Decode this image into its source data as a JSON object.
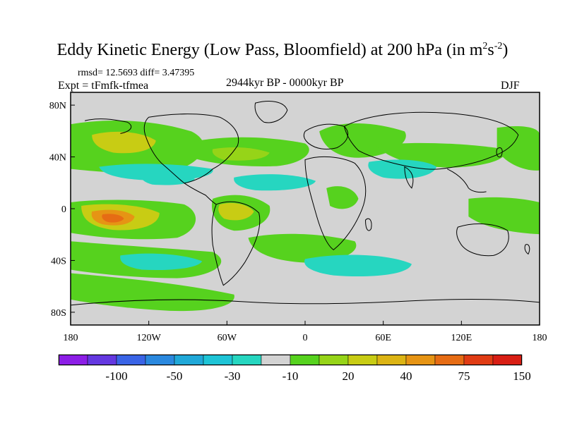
{
  "title": {
    "main": "Eddy Kinetic Energy (Low Pass, Bloomfield) at 200 hPa (in m",
    "sup1": "2",
    "mid": "s",
    "sup2": "-2",
    "end": ")"
  },
  "stats_text": "rmsd= 12.5693  diff= 3.47395",
  "experiment_text": "Expt = tFmfk-tfmea",
  "period_text": "2944kyr BP - 0000kyr BP",
  "season_text": "DJF",
  "map": {
    "projection": "cylindrical equidistant",
    "x_tick_labels": [
      "180",
      "120W",
      "60W",
      "0",
      "60E",
      "120E",
      "180"
    ],
    "y_tick_labels": [
      "80N",
      "40N",
      "0",
      "40S",
      "80S"
    ],
    "background_color": "#d3d3d3",
    "coastline_color": "#000000"
  },
  "colorbar": {
    "colors": [
      "#8c1ee6",
      "#6438e0",
      "#3a64e6",
      "#2a88de",
      "#20a8d8",
      "#1ec4d6",
      "#26d6c0",
      "#d3d3d3",
      "#56d21e",
      "#96d418",
      "#c8cc14",
      "#dcb414",
      "#e69414",
      "#e66c14",
      "#e03c14",
      "#d81e14"
    ],
    "labels": [
      "-100",
      "-50",
      "-30",
      "-10",
      "20",
      "40",
      "75",
      "150"
    ]
  }
}
